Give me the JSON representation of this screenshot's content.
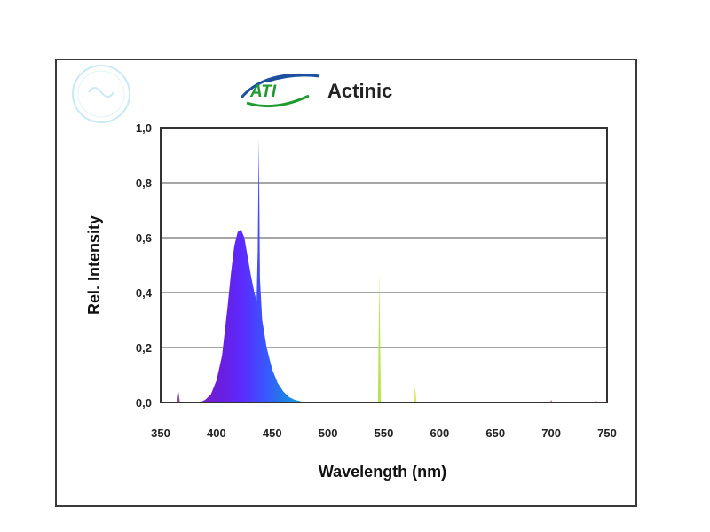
{
  "brand": {
    "name": "ATI",
    "color": "#1f9a2e",
    "swoosh_color": "#1c4fa0"
  },
  "chart_data": {
    "type": "area",
    "title": "Actinic",
    "xlabel": "Wavelength (nm)",
    "ylabel": "Rel. Intensity",
    "xlim": [
      350,
      750
    ],
    "ylim": [
      0,
      1.0
    ],
    "x_ticks": [
      "350",
      "400",
      "450",
      "500",
      "550",
      "600",
      "650",
      "700",
      "750"
    ],
    "y_ticks": [
      "0,0",
      "0,2",
      "0,4",
      "0,6",
      "0,8",
      "1,0"
    ],
    "grid": true,
    "legend": "none",
    "series": [
      {
        "x": [
          385,
          390,
          395,
          400,
          405,
          410,
          413,
          416,
          419,
          422,
          425,
          428,
          431,
          434,
          436,
          437,
          438,
          439,
          441,
          445,
          450,
          455,
          460,
          465,
          470,
          475,
          480
        ],
        "y": [
          0.0,
          0.01,
          0.03,
          0.08,
          0.17,
          0.35,
          0.47,
          0.57,
          0.62,
          0.63,
          0.6,
          0.53,
          0.46,
          0.4,
          0.37,
          0.55,
          0.96,
          0.45,
          0.3,
          0.2,
          0.12,
          0.07,
          0.04,
          0.02,
          0.01,
          0.005,
          0.0
        ]
      }
    ],
    "peaks": [
      {
        "x": 366,
        "y": 0.04,
        "color": "#7a2f8f"
      },
      {
        "x": 546,
        "y": 0.47,
        "color": "#a9e02a"
      },
      {
        "x": 578,
        "y": 0.06,
        "color": "#d6e04a"
      },
      {
        "x": 700,
        "y": 0.01,
        "color": "#cc6666"
      },
      {
        "x": 740,
        "y": 0.01,
        "color": "#cc5555"
      }
    ],
    "gradient_colors": [
      "#7a20c8",
      "#6a1ee0",
      "#5b2bff",
      "#3c52ff",
      "#1f7fe6",
      "#18a8e0"
    ]
  }
}
